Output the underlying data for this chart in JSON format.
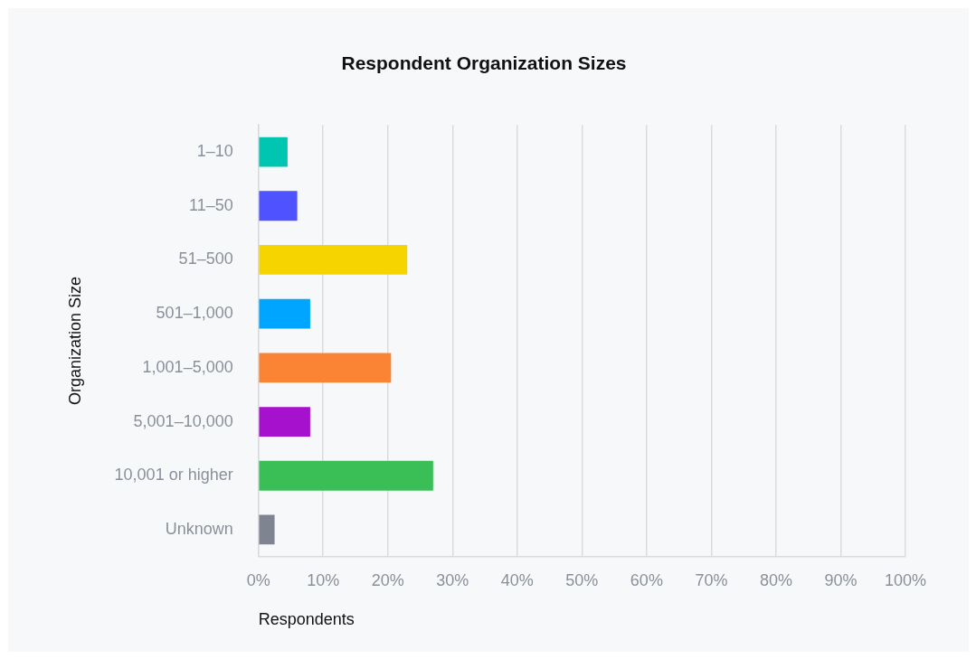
{
  "chart_data": {
    "type": "bar",
    "orientation": "horizontal",
    "title": "Respondent Organization Sizes",
    "xlabel": "Respondents",
    "ylabel": "Organization Size",
    "categories": [
      "1–10",
      "11–50",
      "51–500",
      "501–1,000",
      "1,001–5,000",
      "5,001–10,000",
      "10,001 or higher",
      "Unknown"
    ],
    "values": [
      4.5,
      6,
      23,
      8,
      20.5,
      8,
      27,
      2.5
    ],
    "colors": [
      "#00c5b0",
      "#4f52ff",
      "#f5d400",
      "#00a5ff",
      "#fb8334",
      "#a511cc",
      "#3abf57",
      "#7f8590"
    ],
    "xlim": [
      0,
      100
    ],
    "xticks": [
      {
        "value": 0,
        "label": "0%"
      },
      {
        "value": 10,
        "label": "10%"
      },
      {
        "value": 20,
        "label": "20%"
      },
      {
        "value": 30,
        "label": "30%"
      },
      {
        "value": 40,
        "label": "40%"
      },
      {
        "value": 50,
        "label": "50%"
      },
      {
        "value": 60,
        "label": "60%"
      },
      {
        "value": 70,
        "label": "70%"
      },
      {
        "value": 80,
        "label": "80%"
      },
      {
        "value": 90,
        "label": "90%"
      },
      {
        "value": 100,
        "label": "100%"
      }
    ],
    "grid": "x",
    "legend": false
  }
}
